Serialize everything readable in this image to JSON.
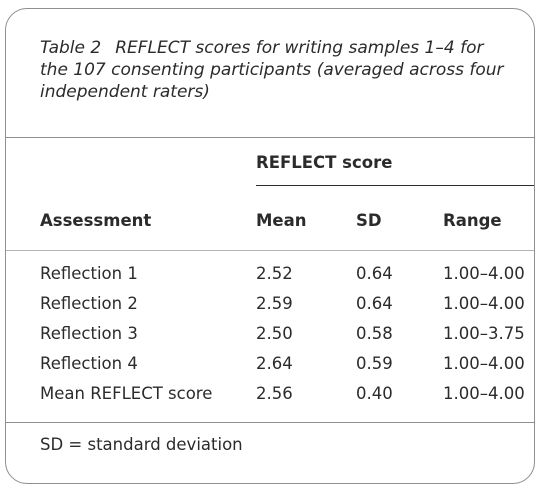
{
  "caption": {
    "label": "Table 2",
    "text": "REFLECT scores for writing samples 1–4 for the 107 consenting participants (averaged across four independent raters)"
  },
  "table": {
    "group_header": "REFLECT score",
    "columns": [
      "Assessment",
      "Mean",
      "SD",
      "Range"
    ],
    "rows": [
      {
        "assessment": "Reflection 1",
        "mean": "2.52",
        "sd": "0.64",
        "range": "1.00–4.00"
      },
      {
        "assessment": "Reflection 2",
        "mean": "2.59",
        "sd": "0.64",
        "range": "1.00–4.00"
      },
      {
        "assessment": "Reflection 3",
        "mean": "2.50",
        "sd": "0.58",
        "range": "1.00–3.75"
      },
      {
        "assessment": "Reflection 4",
        "mean": "2.64",
        "sd": "0.59",
        "range": "1.00–4.00"
      },
      {
        "assessment": "Mean REFLECT score",
        "mean": "2.56",
        "sd": "0.40",
        "range": "1.00–4.00"
      }
    ]
  },
  "footnote": "SD = standard deviation"
}
